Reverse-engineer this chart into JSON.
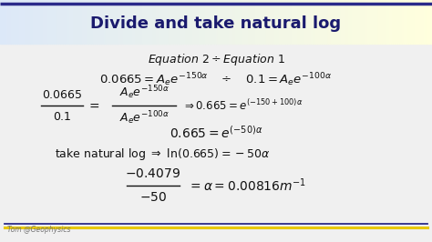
{
  "title": "Divide and take natural log",
  "title_color": "#1a1a6e",
  "title_bg_left": "#dce8f8",
  "title_bg_right": "#ffffdd",
  "bg_color": "#f0f0f0",
  "border_top_color": "#2a2a8a",
  "border_bottom_blue": "#2a2a8a",
  "border_bottom_yellow": "#e8c800",
  "watermark": "Tom @Geophysics",
  "watermark_color": "#777777",
  "text_color": "#111111"
}
